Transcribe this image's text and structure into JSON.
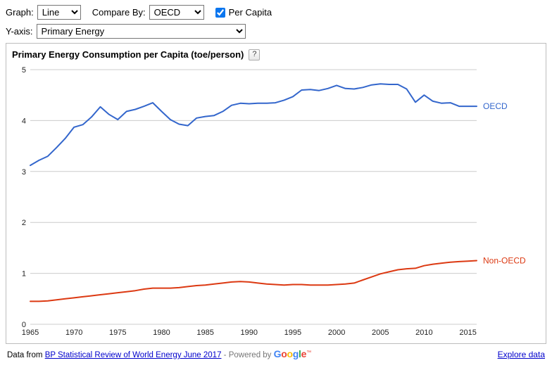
{
  "controls": {
    "graph_label": "Graph:",
    "graph_options": [
      "Line"
    ],
    "graph_value": "Line",
    "compare_by_label": "Compare By:",
    "compare_by_options": [
      "OECD"
    ],
    "compare_by_value": "OECD",
    "per_capita_label": "Per Capita",
    "per_capita_checked": true,
    "y_axis_label": "Y-axis:",
    "y_axis_options": [
      "Primary Energy"
    ],
    "y_axis_value": "Primary Energy"
  },
  "chart": {
    "help_label": "?"
  },
  "chart_data": {
    "type": "line",
    "title": "Primary Energy Consumption per Capita (toe/person)",
    "xlabel": "",
    "ylabel": "",
    "xlim": [
      1965,
      2016
    ],
    "ylim": [
      0,
      5
    ],
    "x_ticks": [
      1965,
      1970,
      1975,
      1980,
      1985,
      1990,
      1995,
      2000,
      2005,
      2010,
      2015
    ],
    "y_ticks": [
      0,
      1,
      2,
      3,
      4,
      5
    ],
    "grid": true,
    "grid_color": "#cccccc",
    "legend_position": "right-of-line-end",
    "x": [
      1965,
      1966,
      1967,
      1968,
      1969,
      1970,
      1971,
      1972,
      1973,
      1974,
      1975,
      1976,
      1977,
      1978,
      1979,
      1980,
      1981,
      1982,
      1983,
      1984,
      1985,
      1986,
      1987,
      1988,
      1989,
      1990,
      1991,
      1992,
      1993,
      1994,
      1995,
      1996,
      1997,
      1998,
      1999,
      2000,
      2001,
      2002,
      2003,
      2004,
      2005,
      2006,
      2007,
      2008,
      2009,
      2010,
      2011,
      2012,
      2013,
      2014,
      2015,
      2016
    ],
    "series": [
      {
        "name": "OECD",
        "color": "#3366cc",
        "values": [
          3.12,
          3.22,
          3.3,
          3.47,
          3.65,
          3.87,
          3.92,
          4.07,
          4.27,
          4.12,
          4.02,
          4.18,
          4.22,
          4.28,
          4.35,
          4.18,
          4.02,
          3.93,
          3.9,
          4.05,
          4.08,
          4.1,
          4.18,
          4.3,
          4.34,
          4.33,
          4.34,
          4.34,
          4.35,
          4.4,
          4.47,
          4.6,
          4.61,
          4.59,
          4.63,
          4.69,
          4.63,
          4.62,
          4.65,
          4.7,
          4.72,
          4.71,
          4.71,
          4.62,
          4.36,
          4.5,
          4.38,
          4.34,
          4.35,
          4.28,
          4.28,
          4.28
        ]
      },
      {
        "name": "Non-OECD",
        "color": "#dc3912",
        "values": [
          0.45,
          0.45,
          0.46,
          0.48,
          0.5,
          0.52,
          0.54,
          0.56,
          0.58,
          0.6,
          0.62,
          0.64,
          0.66,
          0.69,
          0.71,
          0.71,
          0.71,
          0.72,
          0.74,
          0.76,
          0.77,
          0.79,
          0.81,
          0.83,
          0.84,
          0.83,
          0.81,
          0.79,
          0.78,
          0.77,
          0.78,
          0.78,
          0.77,
          0.77,
          0.77,
          0.78,
          0.79,
          0.81,
          0.87,
          0.93,
          0.99,
          1.03,
          1.07,
          1.09,
          1.1,
          1.15,
          1.18,
          1.2,
          1.22,
          1.23,
          1.24,
          1.25
        ]
      }
    ]
  },
  "footer": {
    "prefix": "Data from ",
    "source_link": "BP Statistical Review of World Energy June 2017",
    "separator": " - Powered by ",
    "google_letters": [
      {
        "c": "G",
        "color": "#4285F4"
      },
      {
        "c": "o",
        "color": "#EA4335"
      },
      {
        "c": "o",
        "color": "#FBBC05"
      },
      {
        "c": "g",
        "color": "#4285F4"
      },
      {
        "c": "l",
        "color": "#34A853"
      },
      {
        "c": "e",
        "color": "#EA4335"
      }
    ],
    "google_mark": "™",
    "explore_label": "Explore data"
  }
}
